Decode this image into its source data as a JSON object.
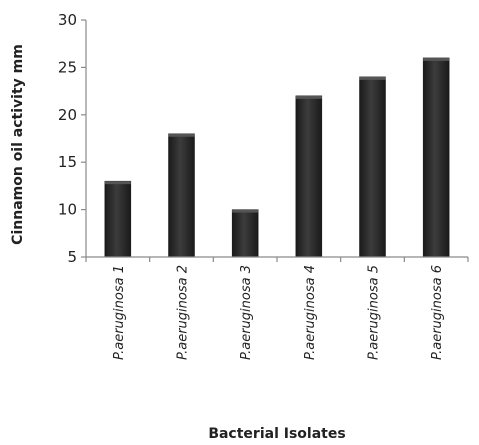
{
  "chart_data": {
    "type": "bar",
    "categories": [
      "P.aeruginosa 1",
      "P.aeruginosa 2",
      "P.aeruginosa 3",
      "P.aeruginosa 4",
      "P.aeruginosa 5",
      "P.aeruginosa 6"
    ],
    "values": [
      13,
      18,
      10,
      22,
      24,
      26
    ],
    "title": "",
    "xlabel": "Bacterial Isolates",
    "ylabel": "Cinnamon oil activity mm",
    "ylim": [
      5,
      30
    ],
    "yticks": [
      5,
      10,
      15,
      20,
      25,
      30
    ],
    "grid": false,
    "legend": "none",
    "bar_color": "#2b2b2b",
    "axis_color": "#8a8a8a"
  }
}
